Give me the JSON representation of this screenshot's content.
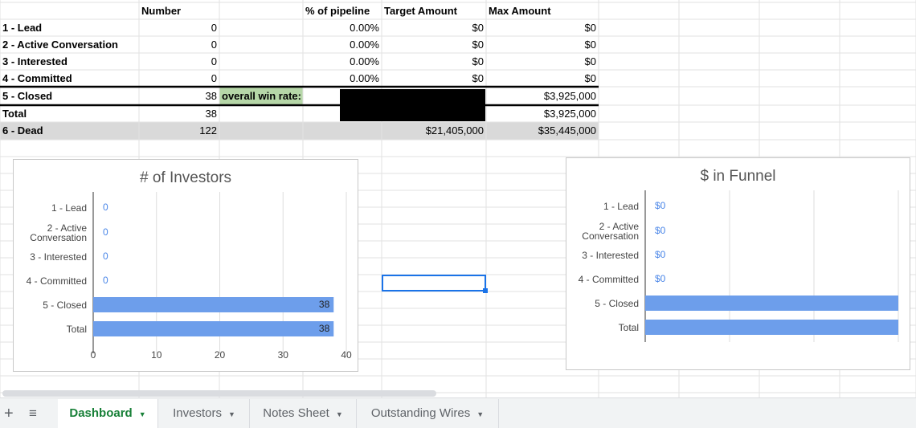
{
  "table": {
    "header": [
      null,
      "Number",
      null,
      "% of pipeline",
      "Target Amount",
      "Max Amount"
    ],
    "rows": [
      [
        "1 - Lead",
        "0",
        null,
        "0.00%",
        "$0",
        "$0"
      ],
      [
        "2 - Active Conversation",
        "0",
        null,
        "0.00%",
        "$0",
        "$0"
      ],
      [
        "3 - Interested",
        "0",
        null,
        "0.00%",
        "$0",
        "$0"
      ],
      [
        "4 - Committed",
        "0",
        null,
        "0.00%",
        "$0",
        "$0"
      ],
      [
        "5 - Closed",
        "38",
        "overall win rate:",
        null,
        null,
        "$3,925,000"
      ],
      [
        "Total",
        "38",
        null,
        null,
        null,
        "$3,925,000"
      ],
      [
        "6 - Dead",
        "122",
        null,
        null,
        "$21,405,000",
        "$35,445,000"
      ]
    ]
  },
  "chart_data": [
    {
      "type": "bar",
      "orientation": "horizontal",
      "title": "# of Investors",
      "categories": [
        "1 - Lead",
        "2 - Active Conversation",
        "3 - Interested",
        "4 - Committed",
        "5 - Closed",
        "Total"
      ],
      "values": [
        0,
        0,
        0,
        0,
        38,
        38
      ],
      "color": "#6d9eeb",
      "xlim": [
        0,
        40
      ],
      "xticks": [
        0,
        10,
        20,
        30,
        40
      ],
      "grid": true
    },
    {
      "type": "bar",
      "orientation": "horizontal",
      "title": "$ in Funnel",
      "categories": [
        "1 - Lead",
        "2 - Active Conversation",
        "3 - Interested",
        "4 - Committed",
        "5 - Closed",
        "Total"
      ],
      "values": [
        0,
        0,
        0,
        0,
        3925000,
        3925000
      ],
      "value_labels": [
        "$0",
        "$0",
        "$0",
        "$0",
        null,
        null
      ],
      "color": "#6d9eeb",
      "xlim": [
        0,
        3925000
      ],
      "grid": true
    }
  ],
  "tabs": [
    "Dashboard",
    "Investors",
    "Notes Sheet",
    "Outstanding Wires"
  ]
}
